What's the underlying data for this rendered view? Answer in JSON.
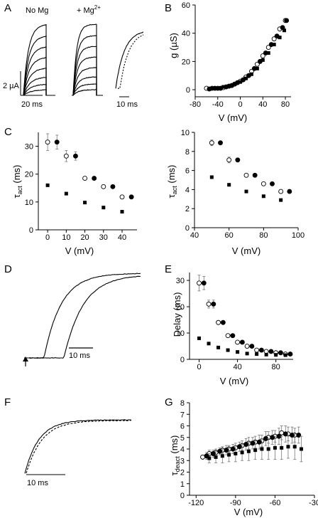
{
  "panels": {
    "A": {
      "letter": "A",
      "label_left": "No Mg",
      "label_mid": "+ Mg",
      "label_mid_sup": "2+",
      "scale_current": "2 µA",
      "scale_time_left": "20 ms",
      "scale_time_right": "10 ms"
    },
    "B": {
      "letter": "B",
      "xlabel": "V (mV)",
      "ylabel": "g (µS)"
    },
    "C": {
      "letter": "C",
      "xlabel_left": "V (mV)",
      "xlabel_right": "V (mV)",
      "ylabel_left": "τ",
      "ylabel_left_sub": "act",
      "ylabel_left_unit": " (ms)",
      "ylabel_right": "τ",
      "ylabel_right_sub": "act",
      "ylabel_right_unit": " (ms)"
    },
    "D": {
      "letter": "D",
      "scale_time": "10 ms"
    },
    "E": {
      "letter": "E",
      "xlabel": "V (mV)",
      "ylabel": "Delay (ms)"
    },
    "F": {
      "letter": "F",
      "scale_time": "10 ms"
    },
    "G": {
      "letter": "G",
      "xlabel": "V (mV)",
      "ylabel": "τ",
      "ylabel_sub": "deact",
      "ylabel_unit": " (ms)"
    }
  },
  "chart_data": [
    {
      "id": "B",
      "type": "scatter",
      "xlabel": "V (mV)",
      "ylabel": "g (µS)",
      "xlim": [
        -80,
        90
      ],
      "ylim": [
        -5,
        60
      ],
      "xticks": [
        -80,
        -40,
        0,
        40,
        80
      ],
      "yticks": [
        0,
        20,
        40,
        60
      ],
      "series": [
        {
          "marker": "open-circle",
          "points": [
            [
              -60,
              1
            ],
            [
              -50,
              1
            ],
            [
              -40,
              1
            ],
            [
              -30,
              1.5
            ],
            [
              -20,
              2.5
            ],
            [
              -10,
              4
            ],
            [
              0,
              6
            ],
            [
              10,
              9
            ],
            [
              20,
              13
            ],
            [
              30,
              18
            ],
            [
              40,
              24
            ],
            [
              50,
              30
            ],
            [
              60,
              36
            ],
            [
              70,
              43
            ],
            [
              80,
              49
            ]
          ]
        },
        {
          "marker": "filled-circle",
          "points": [
            [
              -55,
              0.5
            ],
            [
              -45,
              1
            ],
            [
              -35,
              1
            ],
            [
              -25,
              2
            ],
            [
              -15,
              3
            ],
            [
              -5,
              5
            ],
            [
              5,
              7
            ],
            [
              15,
              10
            ],
            [
              25,
              15
            ],
            [
              35,
              20
            ],
            [
              45,
              26
            ],
            [
              55,
              32
            ],
            [
              65,
              38
            ],
            [
              75,
              44
            ],
            [
              82,
              49
            ]
          ]
        },
        {
          "marker": "filled-square",
          "points": [
            [
              -50,
              1
            ],
            [
              -40,
              1
            ],
            [
              -30,
              2
            ],
            [
              -20,
              2.5
            ],
            [
              -10,
              4
            ],
            [
              0,
              5.5
            ],
            [
              10,
              8
            ],
            [
              20,
              11
            ],
            [
              30,
              15
            ],
            [
              40,
              21
            ],
            [
              50,
              26
            ],
            [
              60,
              32
            ],
            [
              70,
              37
            ],
            [
              78,
              42
            ]
          ]
        }
      ]
    },
    {
      "id": "C-left",
      "type": "scatter",
      "xlabel": "V (mV)",
      "ylabel": "τact (ms)",
      "xlim": [
        -5,
        48
      ],
      "ylim": [
        0,
        35
      ],
      "xticks": [
        0,
        10,
        20,
        30,
        40
      ],
      "yticks": [
        0,
        10,
        20,
        30
      ],
      "series": [
        {
          "marker": "open-circle",
          "points": [
            [
              0,
              31.5,
              3
            ],
            [
              10,
              26.5,
              2
            ],
            [
              20,
              18.5,
              0
            ],
            [
              30,
              15.5,
              0
            ],
            [
              40,
              11.8,
              0
            ]
          ]
        },
        {
          "marker": "filled-circle",
          "points": [
            [
              5,
              31.5,
              2.5
            ],
            [
              15,
              26.5,
              1.5
            ],
            [
              25,
              18.5,
              0
            ],
            [
              35,
              15.5,
              0
            ],
            [
              45,
              11.8,
              0
            ]
          ]
        },
        {
          "marker": "filled-square",
          "points": [
            [
              0,
              16,
              0
            ],
            [
              10,
              13,
              0
            ],
            [
              20,
              9.8,
              0
            ],
            [
              30,
              8,
              0
            ],
            [
              40,
              6.5,
              0
            ]
          ]
        }
      ]
    },
    {
      "id": "C-right",
      "type": "scatter",
      "xlabel": "V (mV)",
      "ylabel": "τact (ms)",
      "xlim": [
        40,
        100
      ],
      "ylim": [
        0,
        10
      ],
      "xticks": [
        40,
        60,
        80,
        100
      ],
      "yticks": [
        0,
        2,
        4,
        6,
        8,
        10
      ],
      "series": [
        {
          "marker": "open-circle",
          "points": [
            [
              50,
              8.9,
              0.3
            ],
            [
              60,
              7.1,
              0.3
            ],
            [
              70,
              5.5,
              0
            ],
            [
              80,
              4.6,
              0
            ],
            [
              90,
              3.8,
              0
            ]
          ]
        },
        {
          "marker": "filled-circle",
          "points": [
            [
              55,
              8.9,
              0
            ],
            [
              65,
              7.1,
              0
            ],
            [
              75,
              5.5,
              0
            ],
            [
              85,
              4.6,
              0
            ],
            [
              95,
              3.8,
              0
            ]
          ]
        },
        {
          "marker": "filled-square",
          "points": [
            [
              50,
              5.3,
              0
            ],
            [
              60,
              4.5,
              0
            ],
            [
              70,
              3.8,
              0
            ],
            [
              80,
              3.3,
              0
            ],
            [
              90,
              2.9,
              0
            ]
          ]
        }
      ]
    },
    {
      "id": "E",
      "type": "scatter",
      "xlabel": "V (mV)",
      "ylabel": "Delay (ms)",
      "xlim": [
        -10,
        98
      ],
      "ylim": [
        0,
        33
      ],
      "xticks": [
        0,
        40,
        80
      ],
      "yticks": [
        0,
        10,
        20,
        30
      ],
      "series": [
        {
          "marker": "open-circle",
          "points": [
            [
              0,
              29,
              3
            ],
            [
              10,
              21,
              1.5
            ],
            [
              20,
              14,
              0
            ],
            [
              30,
              9,
              0
            ],
            [
              40,
              6.5,
              0
            ],
            [
              50,
              5,
              0
            ],
            [
              60,
              3.5,
              0
            ],
            [
              70,
              3,
              0
            ],
            [
              80,
              2.5,
              0
            ],
            [
              90,
              2,
              0
            ]
          ]
        },
        {
          "marker": "filled-circle",
          "points": [
            [
              5,
              29,
              2.5
            ],
            [
              15,
              21,
              1.5
            ],
            [
              25,
              14,
              0
            ],
            [
              35,
              9,
              0
            ],
            [
              45,
              6.5,
              0
            ],
            [
              55,
              5,
              0
            ],
            [
              65,
              3.5,
              0
            ],
            [
              75,
              3,
              0
            ],
            [
              85,
              2.5,
              0
            ],
            [
              95,
              2,
              0
            ]
          ]
        },
        {
          "marker": "filled-square",
          "points": [
            [
              0,
              8,
              0
            ],
            [
              10,
              6,
              0
            ],
            [
              20,
              4.5,
              0
            ],
            [
              30,
              3.5,
              0
            ],
            [
              40,
              2.8,
              0
            ],
            [
              50,
              2.2,
              0
            ],
            [
              60,
              2,
              0
            ],
            [
              70,
              1.8,
              0
            ],
            [
              80,
              1.7,
              0
            ],
            [
              90,
              1.6,
              0
            ]
          ]
        }
      ]
    },
    {
      "id": "G",
      "type": "scatter",
      "xlabel": "V (mV)",
      "ylabel": "τdeact (ms)",
      "xlim": [
        -125,
        -30
      ],
      "ylim": [
        0,
        8
      ],
      "xticks": [
        -120,
        -90,
        -60,
        -30
      ],
      "yticks": [
        0,
        1,
        2,
        3,
        4,
        5,
        6,
        7,
        8
      ],
      "series": [
        {
          "marker": "open-circle",
          "points": [
            [
              -115,
              3.3,
              0
            ],
            [
              -110,
              3.6,
              0.3
            ],
            [
              -105,
              3.7,
              0.3
            ],
            [
              -100,
              3.9,
              0.3
            ],
            [
              -95,
              4.0,
              0.3
            ],
            [
              -90,
              4.1,
              0.4
            ],
            [
              -85,
              4.3,
              0.4
            ],
            [
              -80,
              4.5,
              0.5
            ],
            [
              -75,
              4.6,
              0.5
            ],
            [
              -70,
              4.7,
              0.5
            ],
            [
              -65,
              5.0,
              0.5
            ],
            [
              -60,
              5.1,
              0.5
            ],
            [
              -55,
              5.4,
              0.6
            ],
            [
              -50,
              5.3,
              0.6
            ],
            [
              -45,
              5.2,
              0.6
            ]
          ]
        },
        {
          "marker": "filled-circle",
          "points": [
            [
              -112,
              3.4,
              0.3
            ],
            [
              -107,
              3.6,
              0.3
            ],
            [
              -102,
              3.8,
              0.3
            ],
            [
              -97,
              3.9,
              0.4
            ],
            [
              -92,
              4.0,
              0.4
            ],
            [
              -87,
              4.2,
              0.4
            ],
            [
              -82,
              4.4,
              0.5
            ],
            [
              -77,
              4.5,
              0.5
            ],
            [
              -72,
              4.6,
              0.6
            ],
            [
              -67,
              4.9,
              0.6
            ],
            [
              -62,
              5.0,
              0.6
            ],
            [
              -57,
              5.1,
              0.7
            ],
            [
              -52,
              5.3,
              0.7
            ],
            [
              -47,
              5.2,
              0.7
            ],
            [
              -42,
              5.2,
              0.7
            ]
          ]
        },
        {
          "marker": "filled-square",
          "points": [
            [
              -110,
              3.2,
              0.4
            ],
            [
              -105,
              3.3,
              0.5
            ],
            [
              -100,
              3.4,
              0.6
            ],
            [
              -95,
              3.5,
              0.6
            ],
            [
              -90,
              3.6,
              0.7
            ],
            [
              -85,
              3.7,
              0.7
            ],
            [
              -80,
              3.8,
              0.8
            ],
            [
              -75,
              3.9,
              0.8
            ],
            [
              -70,
              4.0,
              0.9
            ],
            [
              -65,
              4.0,
              0.9
            ],
            [
              -60,
              4.1,
              1.0
            ],
            [
              -55,
              4.1,
              1.0
            ],
            [
              -50,
              4.2,
              1.0
            ],
            [
              -45,
              4.2,
              1.1
            ],
            [
              -40,
              4.0,
              1.1
            ]
          ]
        }
      ]
    }
  ]
}
